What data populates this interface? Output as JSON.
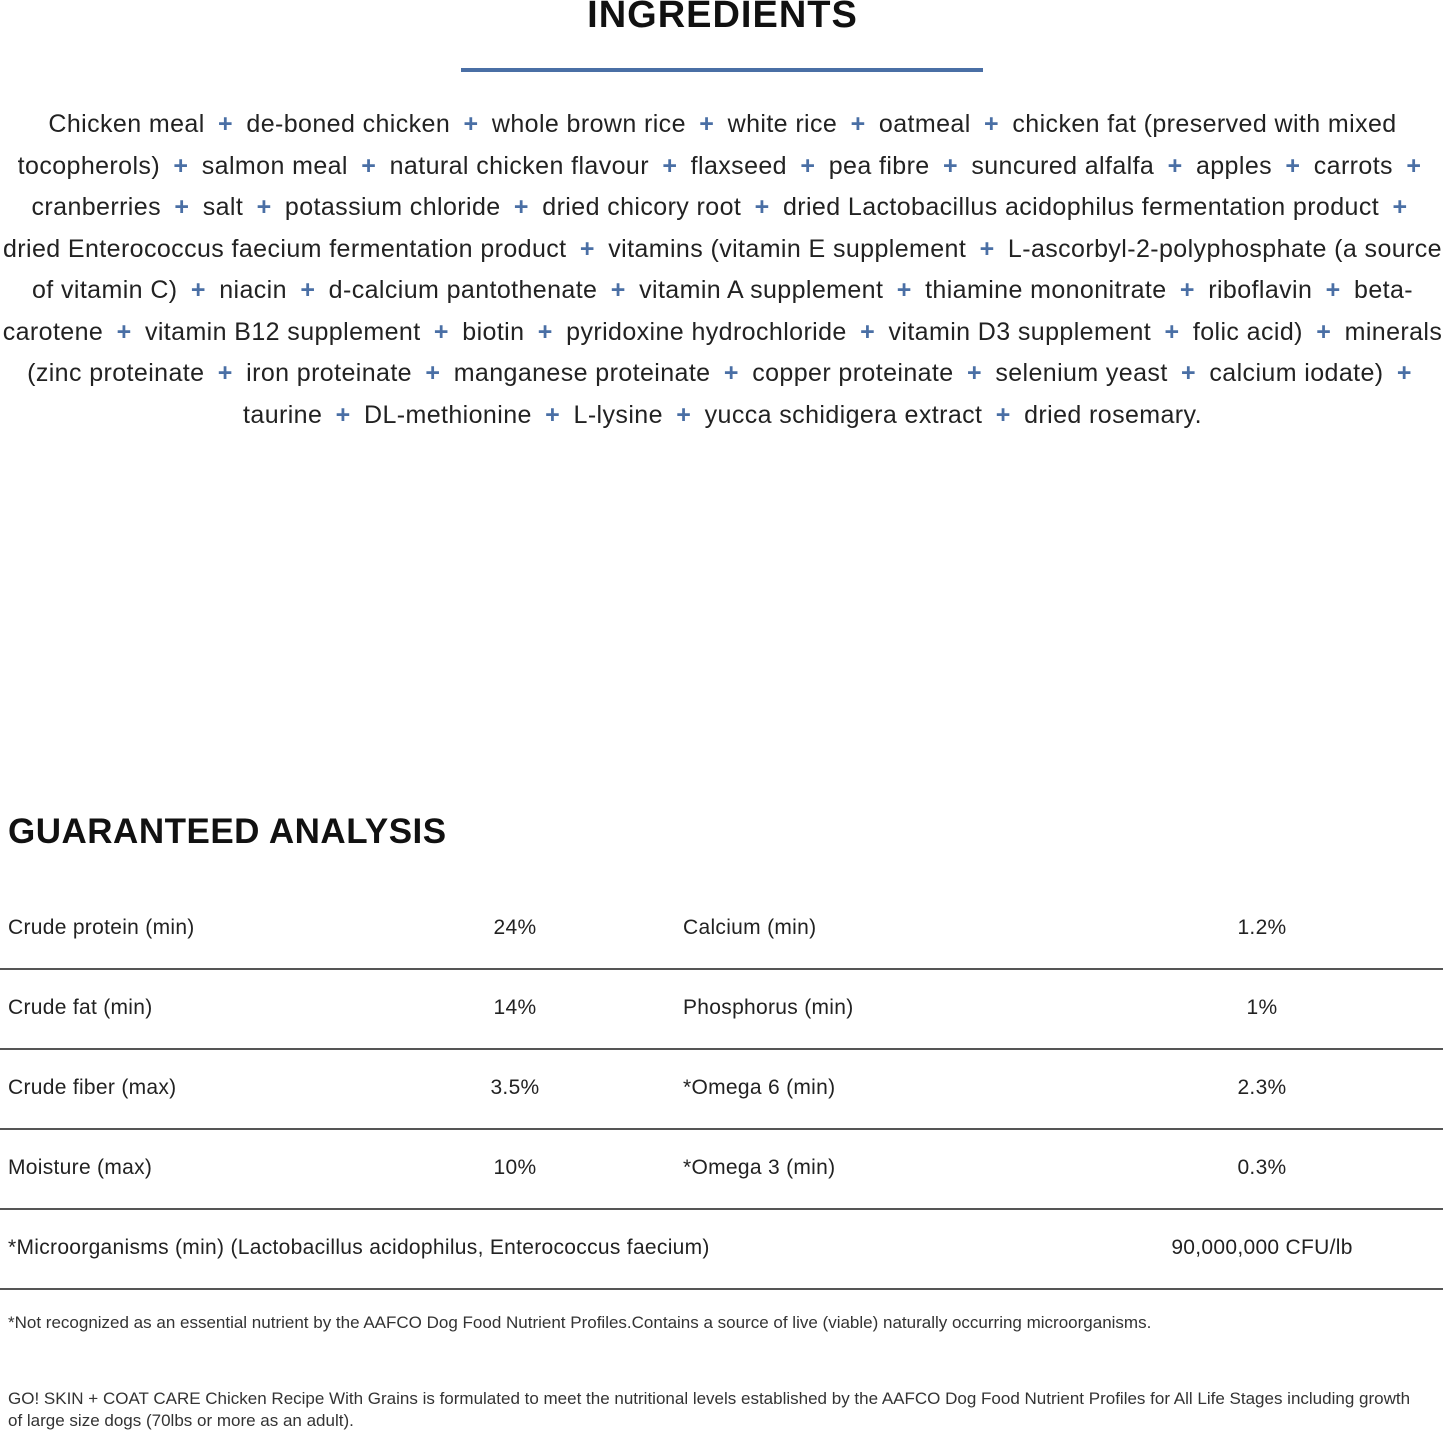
{
  "ingredients": {
    "title": "INGREDIENTS",
    "accent_color": "#4a6fa5",
    "separator": "+",
    "items": [
      "Chicken meal",
      "de-boned chicken",
      "whole brown rice",
      "white rice",
      "oatmeal",
      "chicken fat (preserved with mixed tocopherols)",
      "salmon meal",
      "natural chicken flavour",
      "flaxseed",
      "pea fibre",
      "suncured alfalfa",
      "apples",
      "carrots",
      "cranberries",
      "salt",
      "potassium chloride",
      "dried chicory root",
      "dried Lactobacillus acidophilus fermentation product",
      "dried Enterococcus faecium fermentation product",
      "vitamins (vitamin E supplement",
      "L-ascorbyl-2-polyphosphate (a source of vitamin C)",
      "niacin",
      "d-calcium pantothenate",
      "vitamin A supplement",
      "thiamine mononitrate",
      "riboflavin",
      "beta-carotene",
      "vitamin B12 supplement",
      "biotin",
      "pyridoxine hydrochloride",
      "vitamin D3 supplement",
      "folic acid)",
      "minerals (zinc proteinate",
      "iron proteinate",
      "manganese proteinate",
      "copper proteinate",
      "selenium yeast",
      "calcium iodate)",
      "taurine",
      "DL-methionine",
      "L-lysine",
      "yucca schidigera extract",
      "dried rosemary."
    ]
  },
  "analysis": {
    "title": "GUARANTEED ANALYSIS",
    "rows": [
      {
        "label1": "Crude protein (min)",
        "value1": "24%",
        "label2": "Calcium (min)",
        "value2": "1.2%"
      },
      {
        "label1": "Crude fat (min)",
        "value1": "14%",
        "label2": "Phosphorus (min)",
        "value2": "1%"
      },
      {
        "label1": "Crude fiber (max)",
        "value1": "3.5%",
        "label2": "*Omega 6 (min)",
        "value2": "2.3%"
      },
      {
        "label1": "Moisture (max)",
        "value1": "10%",
        "label2": "*Omega 3 (min)",
        "value2": "0.3%"
      }
    ],
    "wide_row": {
      "label": "*Microorganisms (min) (Lactobacillus acidophilus, Enterococcus faecium)",
      "value": "90,000,000 CFU/lb"
    }
  },
  "footnote": "*Not recognized as an essential nutrient by the AAFCO Dog Food Nutrient Profiles.Contains a source of live (viable) naturally occurring microorganisms.",
  "statement": "GO! SKIN + COAT CARE Chicken Recipe With Grains is formulated to meet the nutritional levels established by the AAFCO Dog Food Nutrient Profiles for All Life Stages including growth of large size dogs (70lbs or more as an adult)."
}
